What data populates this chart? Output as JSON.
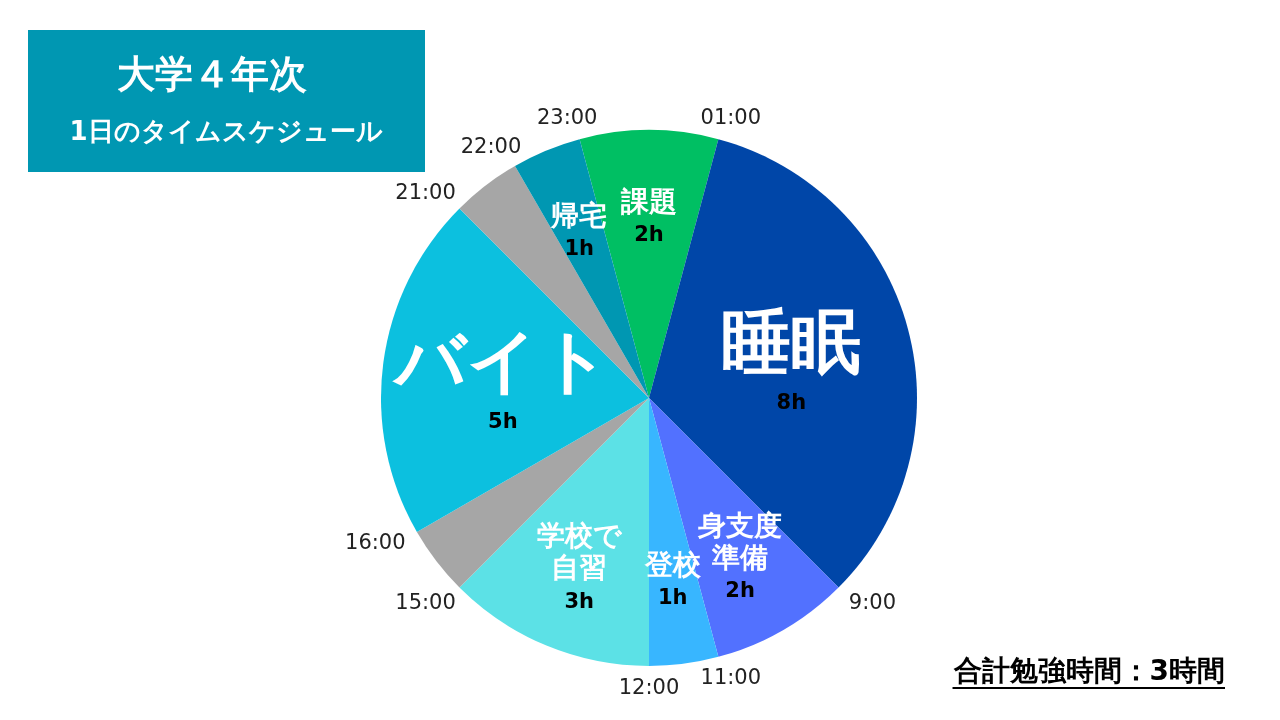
{
  "chart_data": {
    "type": "pie",
    "title": "大学４年次",
    "subtitle": "1日のタイムスケジュール",
    "categories": [
      "課題",
      "睡眠",
      "身支度準備",
      "登校",
      "学校で自習",
      null,
      "バイト",
      null,
      "帰宅"
    ],
    "values": [
      2,
      8,
      2,
      1,
      3,
      1,
      5,
      1,
      1
    ],
    "value_labels": [
      "2h",
      "8h",
      "2h",
      "1h",
      "3h",
      null,
      "5h",
      null,
      "1h"
    ],
    "colors": [
      "#00bf63",
      "#0046a8",
      "#5271ff",
      "#38b6ff",
      "#5ce1e6",
      "#a6a6a6",
      "#0cc0df",
      "#a6a6a6",
      "#0097b2"
    ],
    "annotations": [
      "23:00",
      "01:00",
      "9:00",
      "11:00",
      "12:00",
      "15:00",
      "16:00",
      "21:00",
      "22:00",
      "合計勉強時間：3時間"
    ]
  }
}
